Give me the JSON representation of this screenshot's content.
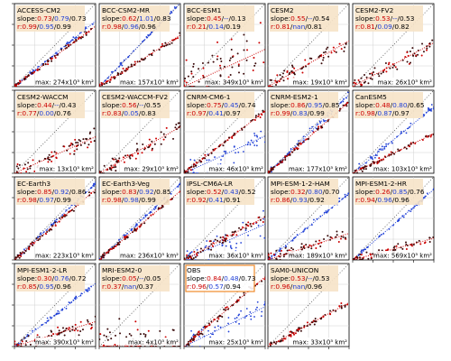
{
  "colors": {
    "red": "#cc0000",
    "blue": "#1f3fd6",
    "black": "#000000",
    "dark": "#3a0a0a",
    "label_bg": "#f6e3c8",
    "obs_border": "#f08a2a",
    "grid": "#d0d0d0"
  },
  "chart_data": {
    "type": "scatter",
    "layout": "small-multiples grid, 4 rows x 5 columns",
    "grid": true,
    "panels": [
      {
        "name": "ACCESS-CM2",
        "slope": [
          "0.73",
          "0.79",
          "0.73"
        ],
        "r": [
          "0.99",
          "0.95",
          "0.99"
        ],
        "max": "274x10³ km²",
        "max_unit": "max: 274x10³ km²"
      },
      {
        "name": "BCC-CSM2-MR",
        "slope": [
          "0.62",
          "1.01",
          "0.83"
        ],
        "r": [
          "0.98",
          "0.96",
          "0.96"
        ],
        "max": "157x10³ km²",
        "max_unit": "max: 157x10³ km²"
      },
      {
        "name": "BCC-ESM1",
        "slope": [
          "0.45",
          "--",
          "0.13"
        ],
        "r": [
          "0.21",
          "0.14",
          "0.19"
        ],
        "max": "349x10³ km²",
        "max_unit": "max: 349x10³ km²"
      },
      {
        "name": "CESM2",
        "slope": [
          "0.55",
          "--",
          "0.54"
        ],
        "r": [
          "0.81",
          "nan",
          "0.81"
        ],
        "max": "19x10³ km²",
        "max_unit": "max: 19x10³ km²"
      },
      {
        "name": "CESM2-FV2",
        "slope": [
          "0.53",
          "--",
          "0.53"
        ],
        "r": [
          "0.81",
          "0.09",
          "0.82"
        ],
        "max": "26x10³ km²",
        "max_unit": "max: 26x10³ km²"
      },
      {
        "name": "CESM2-WACCM",
        "slope": [
          "0.44",
          "--",
          "0.43"
        ],
        "r": [
          "0.77",
          "0.00",
          "0.76"
        ],
        "max": "13x10³ km²",
        "max_unit": "max: 13x10³ km²"
      },
      {
        "name": "CESM2-WACCM-FV2",
        "slope": [
          "0.56",
          "--",
          "0.55"
        ],
        "r": [
          "0.83",
          "0.05",
          "0.83"
        ],
        "max": "29x10³ km²",
        "max_unit": "max: 29x10³ km²"
      },
      {
        "name": "CNRM-CM6-1",
        "slope": [
          "0.75",
          "0.45",
          "0.74"
        ],
        "r": [
          "0.97",
          "0.41",
          "0.97"
        ],
        "max": "46x10³ km²",
        "max_unit": "max: 46x10³ km²"
      },
      {
        "name": "CNRM-ESM2-1",
        "slope": [
          "0.86",
          "0.95",
          "0.85"
        ],
        "r": [
          "0.99",
          "0.83",
          "0.99"
        ],
        "max": "177x10³ km²",
        "max_unit": "max: 177x10³ km²"
      },
      {
        "name": "CanESM5",
        "slope": [
          "0.48",
          "0.80",
          "0.65"
        ],
        "r": [
          "0.98",
          "0.87",
          "0.97"
        ],
        "max": "103x10³ km²",
        "max_unit": "max: 103x10³ km²"
      },
      {
        "name": "EC-Earth3",
        "slope": [
          "0.85",
          "0.92",
          "0.86"
        ],
        "r": [
          "0.98",
          "0.97",
          "0.99"
        ],
        "max": "223x10³ km²",
        "max_unit": "max: 223x10³ km²"
      },
      {
        "name": "EC-Earth3-Veg",
        "slope": [
          "0.83",
          "0.92",
          "0.85"
        ],
        "r": [
          "0.98",
          "0.98",
          "0.99"
        ],
        "max": "236x10³ km²",
        "max_unit": "max: 236x10³ km²"
      },
      {
        "name": "IPSL-CM6A-LR",
        "slope": [
          "0.52",
          "0.43",
          "0.52"
        ],
        "r": [
          "0.92",
          "0.41",
          "0.91"
        ],
        "max": "36x10³ km²",
        "max_unit": "max: 36x10³ km²"
      },
      {
        "name": "MPI-ESM-1-2-HAM",
        "slope": [
          "0.32",
          "0.80",
          "0.70"
        ],
        "r": [
          "0.86",
          "0.93",
          "0.92"
        ],
        "max": "189x10³ km²",
        "max_unit": "max: 189x10³ km²"
      },
      {
        "name": "MPI-ESM1-2-HR",
        "slope": [
          "0.26",
          "0.85",
          "0.76"
        ],
        "r": [
          "0.94",
          "0.96",
          "0.96"
        ],
        "max": "569x10³ km²",
        "max_unit": "max: 569x10³ km²"
      },
      {
        "name": "MPI-ESM1-2-LR",
        "slope": [
          "0.30",
          "0.76",
          "0.72"
        ],
        "r": [
          "0.85",
          "0.95",
          "0.96"
        ],
        "max": "390x10³ km²",
        "max_unit": "max: 390x10³ km²"
      },
      {
        "name": "MRI-ESM2-0",
        "slope": [
          "0.05",
          "--",
          "0.05"
        ],
        "r": [
          "0.37",
          "nan",
          "0.37"
        ],
        "max": "4x10³ km²",
        "max_unit": "max: 4x10³ km²"
      },
      {
        "name": "OBS",
        "slope": [
          "0.84",
          "0.48",
          "0.73"
        ],
        "r": [
          "0.96",
          "0.57",
          "0.94"
        ],
        "max": "25x10³ km²",
        "max_unit": "max: 25x10³ km²",
        "highlight": true
      },
      {
        "name": "SAM0-UNICON",
        "slope": [
          "0.53",
          "--",
          "0.53"
        ],
        "r": [
          "0.96",
          "nan",
          "0.96"
        ],
        "max": "33x10³ km²",
        "max_unit": "max: 33x10³ km²"
      }
    ]
  }
}
